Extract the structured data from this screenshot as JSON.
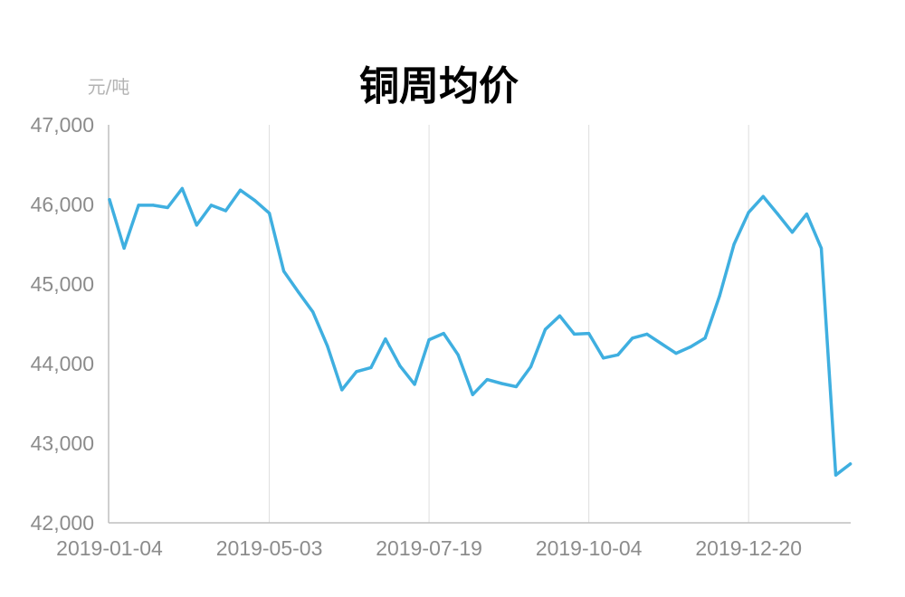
{
  "chart_data": {
    "type": "line",
    "title": "铜周均价",
    "ylabel": "元/吨",
    "xlabel": "",
    "ylim": [
      42000,
      47000
    ],
    "yticks": [
      "42,000",
      "43,000",
      "44,000",
      "45,000",
      "46,000",
      "47,000"
    ],
    "xtick_labels": [
      "2019-01-04",
      "2019-05-03",
      "2019-07-19",
      "2019-10-04",
      "2019-12-20"
    ],
    "grid": "vertical",
    "line_color": "#3fafe0",
    "series": [
      {
        "values": [
          46060,
          45450,
          45990,
          45990,
          45960,
          46200,
          45740,
          45990,
          45920,
          46180,
          46050,
          45890,
          45160,
          44900,
          44650,
          44220,
          43670,
          43900,
          43950,
          44310,
          43970,
          43740,
          44300,
          44380,
          44110,
          43610,
          43800,
          43750,
          43710,
          43960,
          44430,
          44600,
          44370,
          44380,
          44070,
          44110,
          44320,
          44370,
          44250,
          44130,
          44210,
          44320,
          44850,
          45500,
          45900,
          46100,
          45880,
          45650,
          45880,
          45450,
          42600,
          42740
        ]
      }
    ]
  }
}
